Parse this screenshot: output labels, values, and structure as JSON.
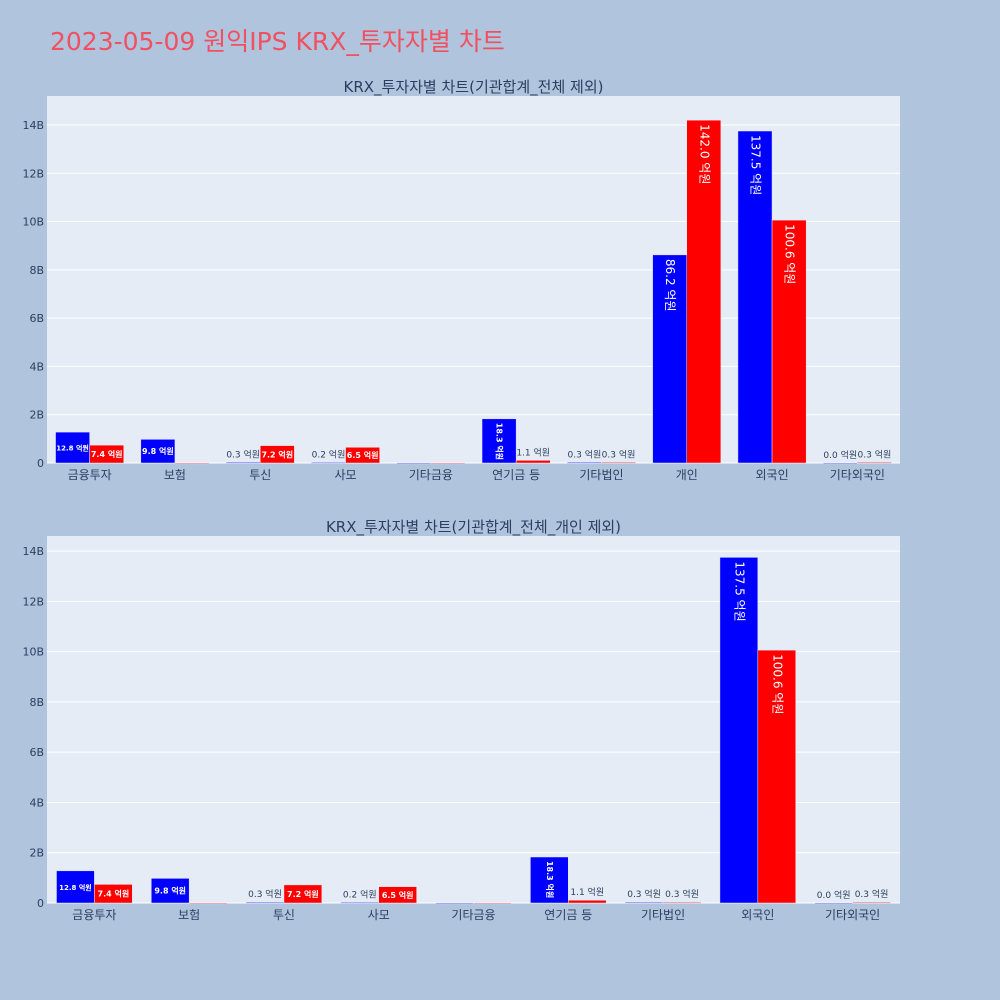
{
  "page": {
    "title": "2023-05-09 원익IPS KRX_투자자별 차트"
  },
  "colors": {
    "buy": "#0000ff",
    "sell": "#ff0000",
    "plot_bg": "#e5ecf6",
    "page_bg": "#b0c4de",
    "title": "#f05060"
  },
  "chart_data": [
    {
      "type": "bar",
      "title": "KRX_투자자별 차트(기관합계_전체 제외)",
      "categories": [
        "금융투자",
        "보험",
        "투신",
        "사모",
        "기타금융",
        "연기금 등",
        "기타법인",
        "개인",
        "외국인",
        "기타외국인"
      ],
      "series": [
        {
          "color": "#0000ff",
          "values": [
            1.28,
            0.98,
            0.03,
            0.02,
            0,
            1.83,
            0.03,
            8.62,
            13.75,
            0.0
          ],
          "labels": [
            "12.8 억원",
            "9.8 억원",
            "0.3 억원",
            "0.2 억원",
            "",
            "18.3 억원",
            "0.3 억원",
            "86.2 억원",
            "137.5 억원",
            "0.0 억원"
          ]
        },
        {
          "color": "#ff0000",
          "values": [
            0.74,
            0,
            0.72,
            0.65,
            0,
            0.11,
            0.03,
            14.2,
            10.06,
            0.03
          ],
          "labels": [
            "7.4 억원",
            "",
            "7.2 억원",
            "6.5 억원",
            "",
            "1.1 억원",
            "0.3 억원",
            "142.0 억원",
            "100.6 억원",
            "0.3 억원"
          ]
        }
      ],
      "yticks": [
        "0",
        "2B",
        "4B",
        "6B",
        "8B",
        "10B",
        "12B",
        "14B"
      ],
      "ylim": [
        0,
        15.2
      ]
    },
    {
      "type": "bar",
      "title": "KRX_투자자별 차트(기관합계_전체_개인 제외)",
      "categories": [
        "금융투자",
        "보험",
        "투신",
        "사모",
        "기타금융",
        "연기금 등",
        "기타법인",
        "외국인",
        "기타외국인"
      ],
      "series": [
        {
          "color": "#0000ff",
          "values": [
            1.28,
            0.98,
            0.03,
            0.02,
            0,
            1.83,
            0.03,
            13.75,
            0.0
          ],
          "labels": [
            "12.8 억원",
            "9.8 억원",
            "0.3 억원",
            "0.2 억원",
            "",
            "18.3 억원",
            "0.3 억원",
            "137.5 억원",
            "0.0 억원"
          ]
        },
        {
          "color": "#ff0000",
          "values": [
            0.74,
            0,
            0.72,
            0.65,
            0,
            0.11,
            0.03,
            10.06,
            0.03
          ],
          "labels": [
            "7.4 억원",
            "",
            "7.2 억원",
            "6.5 억원",
            "",
            "1.1 억원",
            "0.3 억원",
            "100.6 억원",
            "0.3 억원"
          ]
        }
      ],
      "yticks": [
        "0",
        "2B",
        "4B",
        "6B",
        "8B",
        "10B",
        "12B",
        "14B"
      ],
      "ylim": [
        0,
        14.6
      ]
    }
  ]
}
